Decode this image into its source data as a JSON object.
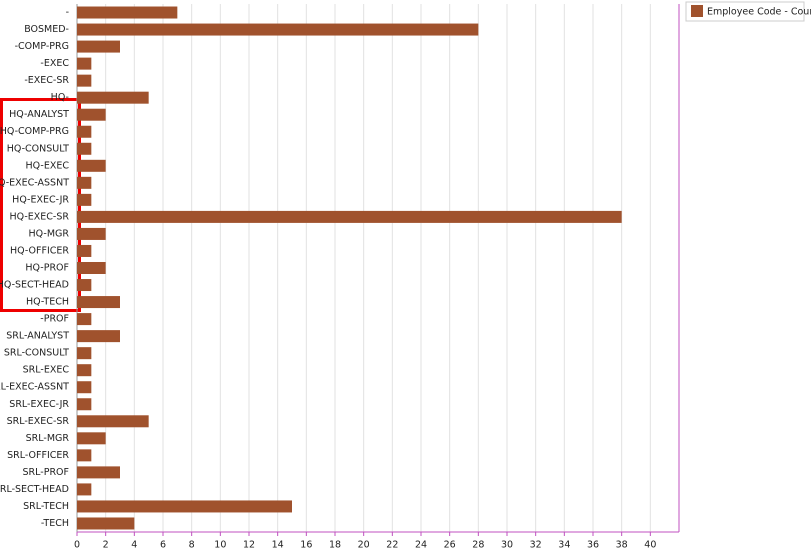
{
  "chart_data": {
    "type": "barh",
    "categories": [
      "-",
      "BOSMED-",
      "-COMP-PRG",
      "-EXEC",
      "-EXEC-SR",
      "HQ-",
      "HQ-ANALYST",
      "HQ-COMP-PRG",
      "HQ-CONSULT",
      "HQ-EXEC",
      "HQ-EXEC-ASSNT",
      "HQ-EXEC-JR",
      "HQ-EXEC-SR",
      "HQ-MGR",
      "HQ-OFFICER",
      "HQ-PROF",
      "HQ-SECT-HEAD",
      "HQ-TECH",
      "-PROF",
      "SRL-ANALYST",
      "SRL-CONSULT",
      "SRL-EXEC",
      "SRL-EXEC-ASSNT",
      "SRL-EXEC-JR",
      "SRL-EXEC-SR",
      "SRL-MGR",
      "SRL-OFFICER",
      "SRL-PROF",
      "SRL-SECT-HEAD",
      "SRL-TECH",
      "-TECH"
    ],
    "series": [
      {
        "name": "Employee Code - Count",
        "color": "#a0522d",
        "values": [
          7,
          28,
          3,
          1,
          1,
          5,
          2,
          1,
          1,
          2,
          1,
          1,
          38,
          2,
          1,
          2,
          1,
          3,
          1,
          3,
          1,
          1,
          1,
          1,
          5,
          2,
          1,
          3,
          1,
          15,
          4
        ]
      }
    ],
    "xlim": [
      0,
      42
    ],
    "xticks": [
      0,
      2,
      4,
      6,
      8,
      10,
      12,
      14,
      16,
      18,
      20,
      22,
      24,
      26,
      28,
      30,
      32,
      34,
      36,
      38,
      40
    ],
    "grid": true,
    "legend": "top-right"
  }
}
